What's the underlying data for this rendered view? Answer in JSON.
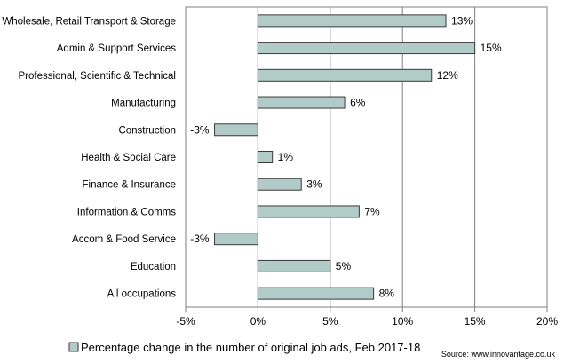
{
  "chart_data": {
    "type": "bar",
    "orientation": "horizontal",
    "categories": [
      "Wholesale, Retail Transport & Storage",
      "Admin & Support Services",
      "Professional, Scientific & Technical",
      "Manufacturing",
      "Construction",
      "Health & Social Care",
      "Finance & Insurance",
      "Information & Comms",
      "Accom & Food Service",
      "Education",
      "All occupations"
    ],
    "values": [
      13,
      15,
      12,
      6,
      -3,
      1,
      3,
      7,
      -3,
      5,
      8
    ],
    "value_labels": [
      "13%",
      "15%",
      "12%",
      "6%",
      "-3%",
      "1%",
      "3%",
      "7%",
      "-3%",
      "5%",
      "8%"
    ],
    "xlim": [
      -5,
      20
    ],
    "xticks": [
      -5,
      0,
      5,
      10,
      15,
      20
    ],
    "xtick_labels": [
      "-5%",
      "0%",
      "5%",
      "10%",
      "15%",
      "20%"
    ],
    "grid": "vertical",
    "legend_position": "bottom",
    "series": [
      {
        "name": "Percentage change in the number of original job ads, Feb 2017-18",
        "color": "#b2cbc9"
      }
    ],
    "source": "Source: www.innovantage.co.uk"
  }
}
